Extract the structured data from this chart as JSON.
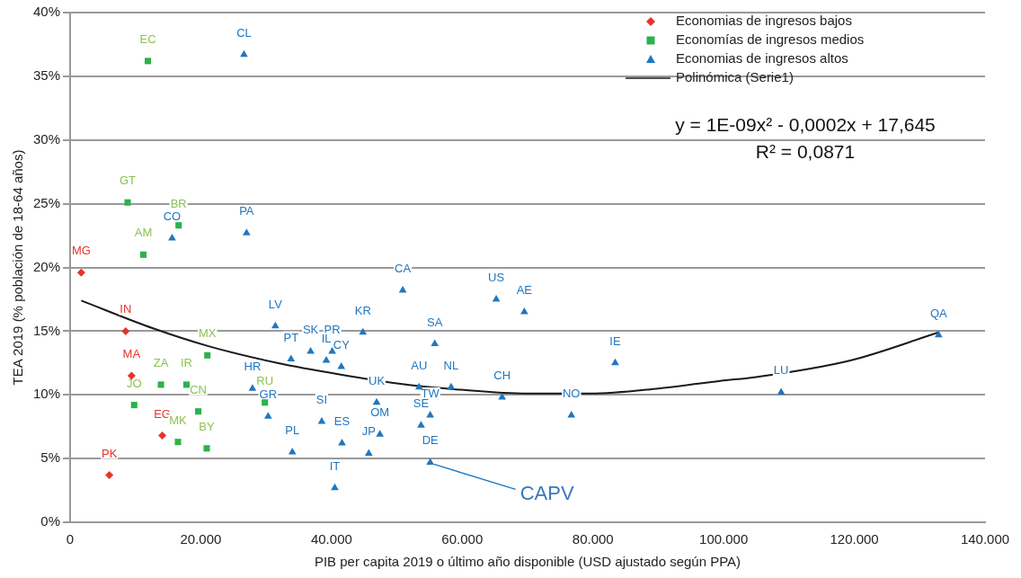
{
  "chart_data": {
    "type": "scatter",
    "xlabel": "PIB per capita 2019 o último año disponible (USD ajustado según PPA)",
    "ylabel": "TEA 2019 (% población de 18-64 años)",
    "xlim": [
      0,
      140000
    ],
    "xticks": [
      0,
      {
        "value": 20000,
        "label": "20.000"
      },
      {
        "value": 40000,
        "label": "40.000"
      },
      {
        "value": 60000,
        "label": "60.000"
      },
      {
        "value": 80000,
        "label": "80.000"
      },
      {
        "value": 100000,
        "label": "100.000"
      },
      {
        "value": 120000,
        "label": "120.000"
      },
      {
        "value": 140000,
        "label": "140.000"
      }
    ],
    "ylim": [
      0,
      40
    ],
    "yticks": [
      {
        "value": 0,
        "label": "0%"
      },
      {
        "value": 5,
        "label": "5%"
      },
      {
        "value": 10,
        "label": "10%"
      },
      {
        "value": 15,
        "label": "15%"
      },
      {
        "value": 20,
        "label": "20%"
      },
      {
        "value": 25,
        "label": "25%"
      },
      {
        "value": 30,
        "label": "30%"
      },
      {
        "value": 35,
        "label": "35%"
      },
      {
        "value": 40,
        "label": "40%"
      }
    ],
    "grid": "y",
    "legend": "top right",
    "series": [
      {
        "name": "Economias de ingresos bajos",
        "marker": "diamond",
        "color": "#e8332a",
        "x": [
          1700,
          8500,
          9400,
          14100,
          6000
        ],
        "values": [
          19.6,
          15.0,
          11.5,
          6.8,
          3.7
        ]
      },
      {
        "name": "Economías de ingresos medios",
        "marker": "square",
        "color": "#2bb24c",
        "x": [
          11900,
          8800,
          16600,
          11200,
          21000,
          13900,
          17800,
          9800,
          19600,
          16500,
          20900,
          29800
        ],
        "values": [
          36.2,
          25.1,
          23.3,
          21.0,
          13.1,
          10.8,
          10.8,
          9.2,
          8.7,
          6.3,
          5.8,
          9.4
        ]
      },
      {
        "name": "Economias de ingresos altos",
        "marker": "triangle",
        "color": "#1f77c0",
        "x": [
          26600,
          15600,
          27000,
          31400,
          33800,
          36800,
          40100,
          39200,
          41500,
          44800,
          50900,
          65200,
          69500,
          55800,
          53400,
          58300,
          66100,
          76700,
          83400,
          108800,
          132900,
          27900,
          30300,
          38500,
          41600,
          34000,
          40500,
          46900,
          47400,
          45700,
          53700,
          55100,
          55100
        ],
        "values": [
          36.7,
          22.3,
          22.7,
          15.4,
          12.8,
          13.4,
          13.4,
          12.7,
          12.2,
          14.9,
          18.2,
          17.5,
          16.5,
          14.0,
          10.6,
          10.6,
          9.8,
          8.4,
          12.5,
          10.2,
          14.7,
          10.5,
          8.3,
          7.9,
          6.2,
          5.5,
          2.7,
          9.4,
          6.9,
          5.4,
          7.6,
          8.4,
          4.7
        ]
      },
      {
        "name": "Polinómica (Serie1)",
        "type": "line",
        "marker": "none",
        "line_style": "solid",
        "color": "#1a1a1a",
        "x": [
          1700,
          12800,
          21300,
          31700,
          41200,
          50000,
          59700,
          70000,
          79600,
          90000,
          99500,
          105000,
          119400,
          132900
        ],
        "values": [
          17.4,
          15.2,
          13.8,
          12.5,
          11.6,
          10.9,
          10.4,
          10.1,
          10.1,
          10.5,
          11.1,
          11.4,
          12.7,
          14.9
        ]
      }
    ],
    "annotations": [
      "y = 1E-09x² - 0,0002x + 17,645",
      "R² = 0,0871",
      {
        "text": "CAPV",
        "x": 55100,
        "y": 4.7
      },
      {
        "text": "MG",
        "x": 1700,
        "y": 19.6
      },
      {
        "text": "IN",
        "x": 8500,
        "y": 15.0
      },
      {
        "text": "MA",
        "x": 9400,
        "y": 11.5
      },
      {
        "text": "EG",
        "x": 14100,
        "y": 6.8
      },
      {
        "text": "PK",
        "x": 6000,
        "y": 3.7
      },
      {
        "text": "EC",
        "x": 11900,
        "y": 36.2
      },
      {
        "text": "GT",
        "x": 8800,
        "y": 25.1
      },
      {
        "text": "BR",
        "x": 16600,
        "y": 23.3
      },
      {
        "text": "AM",
        "x": 11200,
        "y": 21.0
      },
      {
        "text": "MX",
        "x": 21000,
        "y": 13.1
      },
      {
        "text": "ZA",
        "x": 13900,
        "y": 10.8
      },
      {
        "text": "IR",
        "x": 17800,
        "y": 10.8
      },
      {
        "text": "JO",
        "x": 9800,
        "y": 9.2
      },
      {
        "text": "CN",
        "x": 19600,
        "y": 8.7
      },
      {
        "text": "MK",
        "x": 16500,
        "y": 6.3
      },
      {
        "text": "BY",
        "x": 20900,
        "y": 5.8
      },
      {
        "text": "RU",
        "x": 29800,
        "y": 9.4
      },
      {
        "text": "CL",
        "x": 26600,
        "y": 36.7
      },
      {
        "text": "CO",
        "x": 15600,
        "y": 22.3
      },
      {
        "text": "PA",
        "x": 27000,
        "y": 22.7
      },
      {
        "text": "LV",
        "x": 31400,
        "y": 15.4
      },
      {
        "text": "PT",
        "x": 33800,
        "y": 12.8
      },
      {
        "text": "SK",
        "x": 36800,
        "y": 13.4
      },
      {
        "text": "PR",
        "x": 40100,
        "y": 13.4
      },
      {
        "text": "IL",
        "x": 39200,
        "y": 12.7
      },
      {
        "text": "CY",
        "x": 41500,
        "y": 12.2
      },
      {
        "text": "KR",
        "x": 44800,
        "y": 14.9
      },
      {
        "text": "CA",
        "x": 50900,
        "y": 18.2
      },
      {
        "text": "US",
        "x": 65200,
        "y": 17.5
      },
      {
        "text": "AE",
        "x": 69500,
        "y": 16.5
      },
      {
        "text": "SA",
        "x": 55800,
        "y": 14.0
      },
      {
        "text": "AU",
        "x": 53400,
        "y": 10.6
      },
      {
        "text": "NL",
        "x": 58300,
        "y": 10.6
      },
      {
        "text": "CH",
        "x": 66100,
        "y": 9.8
      },
      {
        "text": "NO",
        "x": 76700,
        "y": 8.4
      },
      {
        "text": "IE",
        "x": 83400,
        "y": 12.5
      },
      {
        "text": "LU",
        "x": 108800,
        "y": 10.2
      },
      {
        "text": "QA",
        "x": 132900,
        "y": 14.7
      },
      {
        "text": "HR",
        "x": 27900,
        "y": 10.5
      },
      {
        "text": "GR",
        "x": 30300,
        "y": 8.3
      },
      {
        "text": "SI",
        "x": 38500,
        "y": 7.9
      },
      {
        "text": "ES",
        "x": 41600,
        "y": 6.2
      },
      {
        "text": "PL",
        "x": 34000,
        "y": 5.5
      },
      {
        "text": "IT",
        "x": 40500,
        "y": 2.7
      },
      {
        "text": "UK",
        "x": 46900,
        "y": 9.4
      },
      {
        "text": "OM",
        "x": 47400,
        "y": 6.9
      },
      {
        "text": "JP",
        "x": 45700,
        "y": 5.4
      },
      {
        "text": "SE",
        "x": 53700,
        "y": 7.6
      },
      {
        "text": "TW",
        "x": 55100,
        "y": 8.4
      },
      {
        "text": "DE",
        "x": 55100,
        "y": 4.7
      }
    ]
  }
}
